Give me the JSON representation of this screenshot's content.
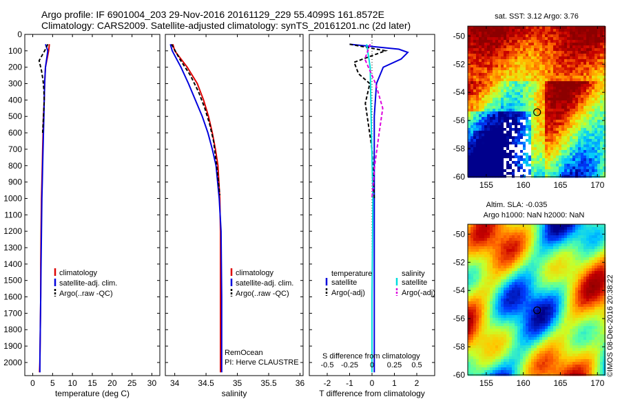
{
  "title_line1": "Argo profile: IF 6901004_203 29-Nov-2016 20161129_229 55.4099S 161.8572E",
  "title_line2": "Climatology: CARS2009. Satellite-adjusted climatology: synTS_20161201.nc (2d later)",
  "map_top_title": "sat. SST: 3.12 Argo: 3.76",
  "map_bottom_title_1": "Altim. SLA: -0.035",
  "map_bottom_title_2": "Argo h1000: NaN h2000: NaN",
  "credit": "©IMOS 08-Dec-2016 20:38:22",
  "remocean_line1": "RemOcean",
  "remocean_line2": "PI: Herve CLAUSTRE",
  "colors": {
    "climatology": "#dd0000",
    "satellite": "#0000dd",
    "argo": "#000000",
    "sal_sat": "#00dddd",
    "sal_argo": "#dd00dd"
  },
  "chart_data": [
    {
      "type": "line",
      "name": "temperature",
      "xlabel": "temperature (deg C)",
      "xlim": [
        -2,
        32
      ],
      "xticks": [
        0,
        5,
        10,
        15,
        20,
        25,
        30
      ],
      "ylim": [
        2080,
        0
      ],
      "yticks": [
        0,
        100,
        200,
        300,
        400,
        500,
        600,
        700,
        800,
        900,
        1000,
        1100,
        1200,
        1300,
        1400,
        1500,
        1600,
        1700,
        1800,
        1900,
        2000
      ],
      "legend": [
        "climatology",
        "satellite-adj. clim.",
        "Argo(..raw -QC)"
      ],
      "series": [
        {
          "name": "climatology",
          "x": [
            4.2,
            4.0,
            3.2,
            3.0,
            2.9,
            2.7,
            2.6,
            2.5,
            2.4,
            2.3,
            2.2,
            2.1,
            2.0,
            2.0,
            1.9,
            1.8,
            1.7
          ],
          "y": [
            60,
            100,
            200,
            300,
            400,
            500,
            600,
            700,
            800,
            900,
            1000,
            1200,
            1400,
            1600,
            1800,
            2000,
            2060
          ]
        },
        {
          "name": "satellite-adj. clim.",
          "x": [
            3.2,
            3.8,
            3.2,
            3.0,
            2.9,
            2.8,
            2.7,
            2.6,
            2.5,
            2.4,
            2.3,
            2.2,
            2.1,
            2.0,
            1.9,
            1.8,
            1.8
          ],
          "y": [
            60,
            100,
            200,
            300,
            400,
            500,
            600,
            700,
            800,
            900,
            1000,
            1200,
            1400,
            1600,
            1800,
            2000,
            2060
          ]
        },
        {
          "name": "Argo(..raw -QC)",
          "x": [
            3.8,
            3.0,
            1.6,
            2.2,
            2.6,
            2.8,
            2.9,
            2.7,
            2.5
          ],
          "y": [
            60,
            100,
            160,
            220,
            280,
            340,
            400,
            500,
            600
          ]
        }
      ]
    },
    {
      "type": "line",
      "name": "salinity",
      "xlabel": "salinity",
      "xlim": [
        33.85,
        36.05
      ],
      "xticks": [
        34,
        34.5,
        35,
        35.5,
        36
      ],
      "ylim": [
        2080,
        0
      ],
      "legend": [
        "climatology",
        "satellite-adj. clim.",
        "Argo(..raw -QC)"
      ],
      "series": [
        {
          "name": "climatology",
          "x": [
            33.97,
            34.0,
            34.2,
            34.36,
            34.46,
            34.54,
            34.6,
            34.65,
            34.69,
            34.72,
            34.73,
            34.73,
            34.73
          ],
          "y": [
            60,
            100,
            200,
            300,
            400,
            500,
            600,
            700,
            800,
            1000,
            1200,
            1600,
            2060
          ]
        },
        {
          "name": "satellite-adj. clim.",
          "x": [
            33.93,
            33.96,
            34.1,
            34.22,
            34.33,
            34.44,
            34.53,
            34.6,
            34.66,
            34.71,
            34.74,
            34.75,
            34.75
          ],
          "y": [
            60,
            100,
            200,
            300,
            400,
            500,
            600,
            700,
            800,
            1000,
            1200,
            1600,
            2060
          ]
        },
        {
          "name": "Argo(..raw -QC)",
          "x": [
            33.95,
            34.08,
            34.25,
            34.38,
            34.48,
            34.56,
            34.62,
            34.67,
            34.72
          ],
          "y": [
            60,
            150,
            250,
            350,
            450,
            550,
            650,
            800,
            980
          ]
        }
      ]
    },
    {
      "type": "line",
      "name": "differences",
      "xlabel": "T difference from climatology",
      "xlabel_top": "S difference from climatology",
      "xlim": [
        -2.8,
        2.8
      ],
      "xticks": [
        -2,
        -1,
        0,
        1,
        2
      ],
      "xticks_top": [
        "-0.5",
        "-0.25",
        "0",
        "0.25",
        "0.5"
      ],
      "ylim": [
        2080,
        0
      ],
      "legend_left_title": "temperature",
      "legend_right_title": "salinity",
      "legend": [
        "satellite",
        "Argo(-adj)",
        "satellite",
        "Argo(-adj)"
      ],
      "series": [
        {
          "name": "temperature satellite",
          "x": [
            -1.0,
            1.2,
            1.6,
            1.3,
            0.5,
            0.2,
            0.1,
            0.1,
            0.1,
            0.1
          ],
          "y": [
            60,
            90,
            110,
            150,
            200,
            300,
            500,
            1000,
            1600,
            2060
          ]
        },
        {
          "name": "temperature Argo(-adj)",
          "x": [
            -1.0,
            0.6,
            -0.8,
            -0.6,
            -0.1,
            -0.3,
            0.0,
            0.1
          ],
          "y": [
            60,
            100,
            170,
            240,
            300,
            420,
            700,
            1000
          ]
        },
        {
          "name": "salinity satellite",
          "x": [
            -0.06,
            -0.02,
            -0.01,
            0.01,
            0.0,
            0.0
          ],
          "y": [
            60,
            200,
            500,
            1000,
            1600,
            2060
          ]
        },
        {
          "name": "salinity Argo(-adj)",
          "x": [
            -0.02,
            -0.08,
            0.04,
            0.12,
            0.08,
            0.03,
            0.0
          ],
          "y": [
            60,
            150,
            300,
            450,
            600,
            800,
            1000
          ]
        }
      ]
    },
    {
      "type": "heatmap",
      "name": "sat. SST map",
      "xticks": [
        155,
        160,
        165,
        170
      ],
      "yticks": [
        -50,
        -52,
        -54,
        -56,
        -58,
        -60
      ],
      "xlim": [
        152.5,
        171
      ],
      "ylim": [
        -60,
        -49.3
      ],
      "marker": {
        "lon": 161.86,
        "lat": -55.41
      }
    },
    {
      "type": "heatmap",
      "name": "altimetry SLA map",
      "xticks": [
        155,
        160,
        165,
        170
      ],
      "yticks": [
        -50,
        -52,
        -54,
        -56,
        -58,
        -60
      ],
      "xlim": [
        152.5,
        171
      ],
      "ylim": [
        -60,
        -49.3
      ],
      "marker": {
        "lon": 161.86,
        "lat": -55.41
      }
    }
  ]
}
